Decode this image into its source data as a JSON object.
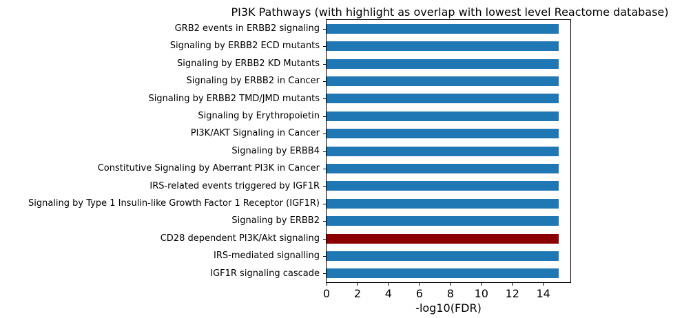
{
  "chart_data": {
    "type": "bar",
    "orientation": "horizontal",
    "title": "PI3K Pathways (with highlight as overlap with lowest level Reactome database)",
    "xlabel": "-log10(FDR)",
    "ylabel": "",
    "categories": [
      "GRB2 events in ERBB2 signaling",
      "Signaling by ERBB2 ECD mutants",
      "Signaling by ERBB2 KD Mutants",
      "Signaling by ERBB2 in Cancer",
      "Signaling by ERBB2 TMD/JMD mutants",
      "Signaling by Erythropoietin",
      "PI3K/AKT Signaling in Cancer",
      "Signaling by ERBB4",
      "Constitutive Signaling by Aberrant PI3K in Cancer",
      "IRS-related events triggered by IGF1R",
      "Signaling by Type 1 Insulin-like Growth Factor 1 Receptor (IGF1R)",
      "Signaling by ERBB2",
      "CD28 dependent PI3K/Akt signaling",
      "IRS-mediated signalling",
      "IGF1R signaling cascade"
    ],
    "values": [
      15,
      15,
      15,
      15,
      15,
      15,
      15,
      15,
      15,
      15,
      15,
      15,
      15,
      15,
      15
    ],
    "bar_colors": [
      "#1f77b4",
      "#1f77b4",
      "#1f77b4",
      "#1f77b4",
      "#1f77b4",
      "#1f77b4",
      "#1f77b4",
      "#1f77b4",
      "#1f77b4",
      "#1f77b4",
      "#1f77b4",
      "#1f77b4",
      "#8b0000",
      "#1f77b4",
      "#1f77b4"
    ],
    "default_bar_color": "#1f77b4",
    "highlight_color": "#8b0000",
    "highlighted_category": "CD28 dependent PI3K/Akt signaling",
    "xlim": [
      0,
      15.75
    ],
    "xticks": [
      0,
      2,
      4,
      6,
      8,
      10,
      12,
      14
    ],
    "grid": false,
    "legend": null
  }
}
